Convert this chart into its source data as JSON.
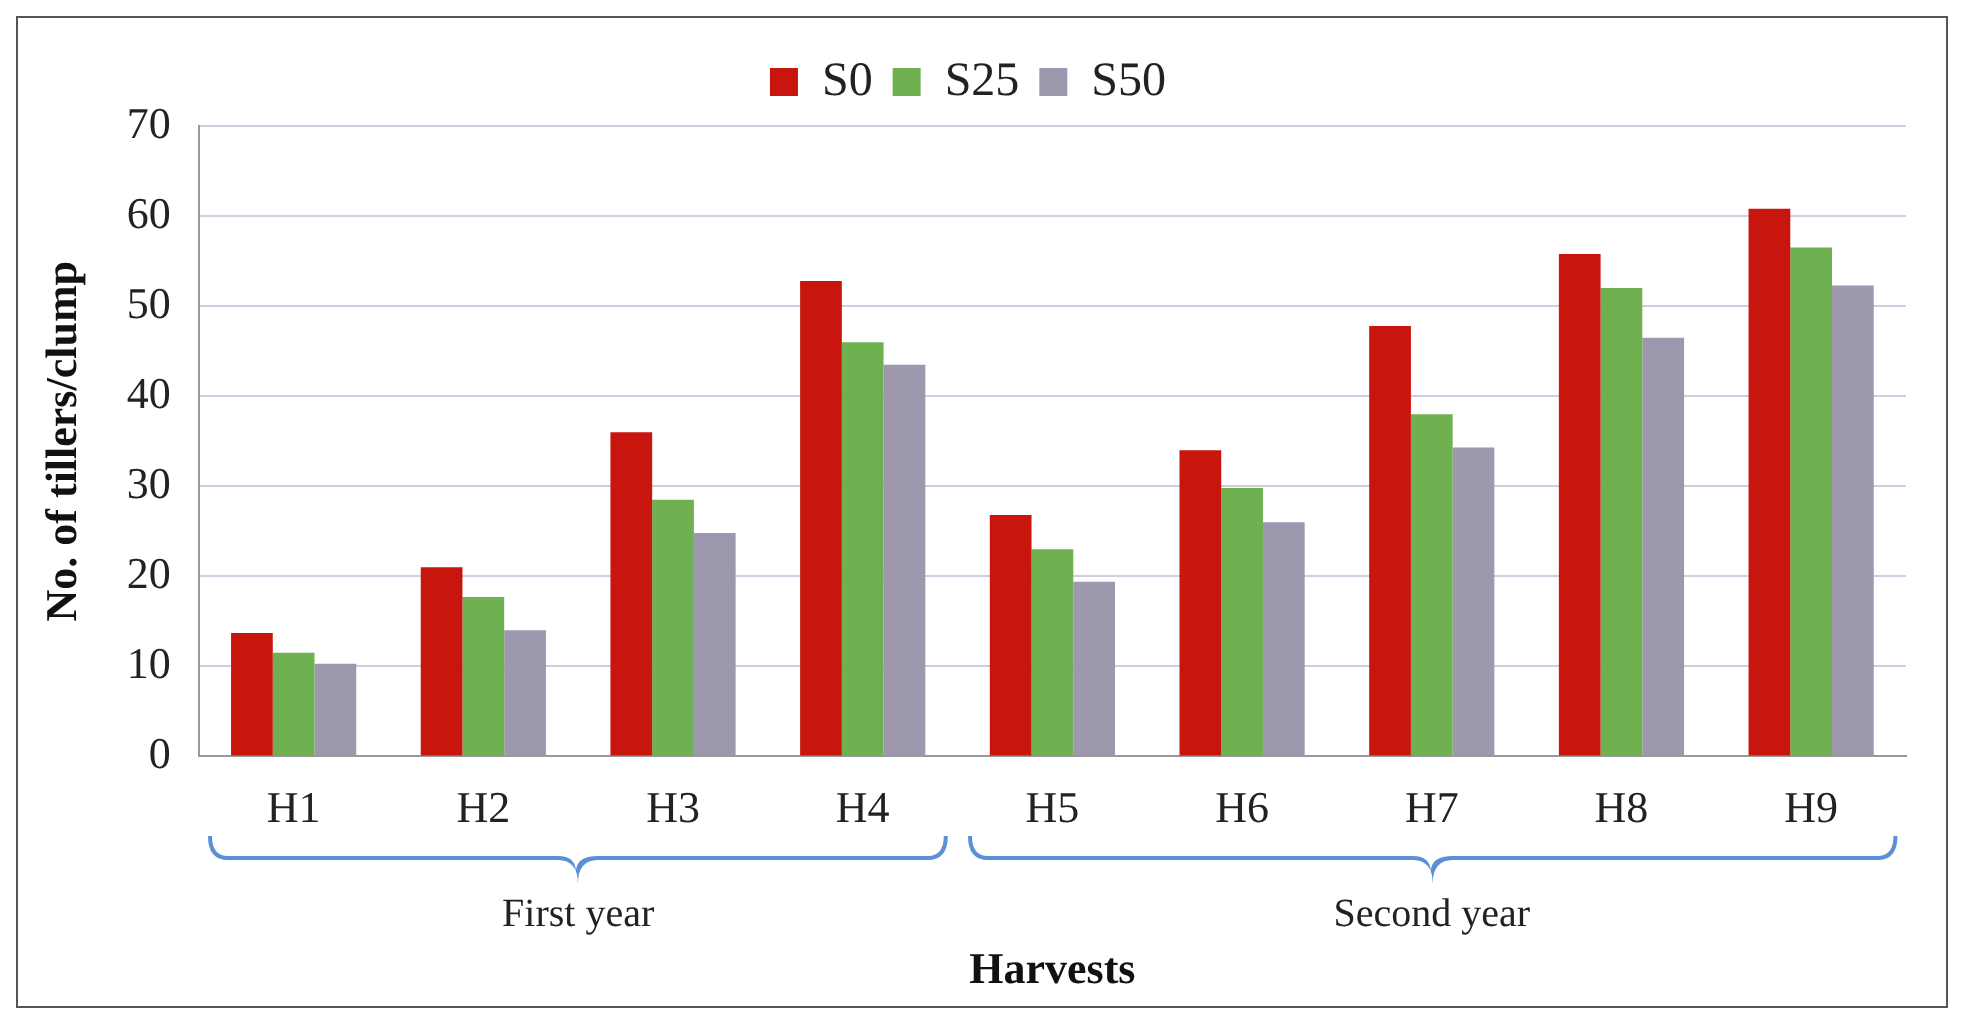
{
  "chart_data": {
    "type": "bar",
    "xlabel": "Harvests",
    "ylabel": "No. of tillers/clump",
    "categories": [
      "H1",
      "H2",
      "H3",
      "H4",
      "H5",
      "H6",
      "H7",
      "H8",
      "H9"
    ],
    "series": [
      {
        "name": "S0",
        "color": "#c8160f",
        "values": [
          13.7,
          21,
          36,
          52.8,
          26.8,
          34,
          47.8,
          55.8,
          60.8
        ]
      },
      {
        "name": "S25",
        "color": "#6fb050",
        "values": [
          11.5,
          17.7,
          28.5,
          46,
          23,
          29.8,
          38,
          52,
          56.5
        ]
      },
      {
        "name": "S50",
        "color": "#9d98ad",
        "values": [
          10.3,
          14,
          24.8,
          43.5,
          19.4,
          26,
          34.3,
          46.5,
          52.3
        ]
      }
    ],
    "ylim": [
      0,
      70
    ],
    "yticks": [
      0,
      10,
      20,
      30,
      40,
      50,
      60,
      70
    ],
    "grid": "y",
    "legend": "top",
    "annotations": [
      "First year",
      "Second year"
    ]
  }
}
